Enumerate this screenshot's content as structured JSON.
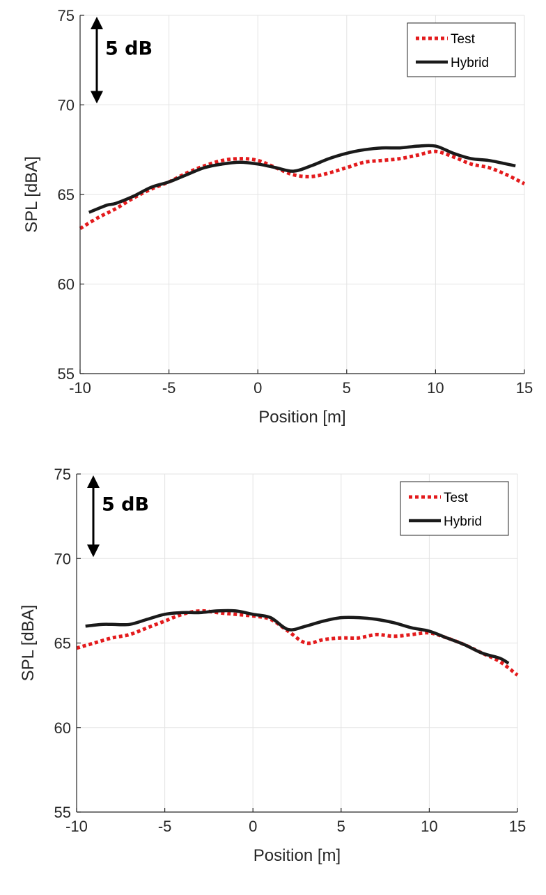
{
  "colors": {
    "test": "#e31a1c",
    "hybrid": "#1a1a1a",
    "axis": "#262626",
    "grid": "#e3e3e3"
  },
  "chart_data": [
    {
      "type": "line",
      "title": "",
      "xlabel": "Position [m]",
      "ylabel": "SPL [dBA]",
      "xlim": [
        -10,
        15
      ],
      "ylim": [
        55,
        75
      ],
      "xticks": [
        -10,
        -5,
        0,
        5,
        10,
        15
      ],
      "xtick_labels": [
        "-10",
        "-5",
        "0",
        "5",
        "10",
        "15"
      ],
      "yticks": [
        55,
        60,
        65,
        70,
        75
      ],
      "ytick_labels": [
        "55",
        "60",
        "65",
        "70",
        "75"
      ],
      "grid": true,
      "legend_position": "top-right",
      "annotation": "5 dB",
      "annotation_range": [
        70,
        75
      ],
      "series": [
        {
          "name": "Test",
          "style": "dotted",
          "x": [
            -10,
            -9,
            -8,
            -7,
            -6,
            -5,
            -4,
            -3,
            -2,
            -1,
            0,
            1,
            2,
            3,
            4,
            5,
            6,
            7,
            8,
            9,
            10,
            11,
            12,
            13,
            14,
            15
          ],
          "y": [
            63.1,
            63.7,
            64.2,
            64.8,
            65.3,
            65.7,
            66.2,
            66.6,
            66.9,
            67.0,
            66.9,
            66.5,
            66.1,
            66.0,
            66.2,
            66.5,
            66.8,
            66.9,
            67.0,
            67.2,
            67.4,
            67.1,
            66.7,
            66.5,
            66.1,
            65.6
          ]
        },
        {
          "name": "Hybrid",
          "style": "solid",
          "x": [
            -9.5,
            -8.5,
            -8,
            -7,
            -6,
            -5,
            -4,
            -3,
            -2,
            -1,
            0,
            1,
            2,
            3,
            4,
            5,
            6,
            7,
            8,
            9,
            10,
            11,
            12,
            13,
            14,
            14.5
          ],
          "y": [
            64.0,
            64.4,
            64.5,
            64.9,
            65.4,
            65.7,
            66.1,
            66.5,
            66.7,
            66.8,
            66.7,
            66.5,
            66.3,
            66.6,
            67.0,
            67.3,
            67.5,
            67.6,
            67.6,
            67.7,
            67.7,
            67.3,
            67.0,
            66.9,
            66.7,
            66.6
          ]
        }
      ]
    },
    {
      "type": "line",
      "title": "",
      "xlabel": "Position [m]",
      "ylabel": "SPL [dBA]",
      "xlim": [
        -10,
        15
      ],
      "ylim": [
        55,
        75
      ],
      "xticks": [
        -10,
        -5,
        0,
        5,
        10,
        15
      ],
      "xtick_labels": [
        "-10",
        "-5",
        "0",
        "5",
        "10",
        "15"
      ],
      "yticks": [
        55,
        60,
        65,
        70,
        75
      ],
      "ytick_labels": [
        "55",
        "60",
        "65",
        "70",
        "75"
      ],
      "grid": true,
      "legend_position": "top-right",
      "annotation": "5 dB",
      "annotation_range": [
        70,
        75
      ],
      "series": [
        {
          "name": "Test",
          "style": "dotted",
          "x": [
            -10,
            -9,
            -8,
            -7,
            -6,
            -5,
            -4,
            -3,
            -2,
            -1,
            0,
            1,
            2,
            3,
            4,
            5,
            6,
            7,
            8,
            9,
            10,
            11,
            12,
            13,
            14,
            15
          ],
          "y": [
            64.7,
            65.0,
            65.3,
            65.5,
            65.9,
            66.3,
            66.7,
            66.9,
            66.8,
            66.7,
            66.6,
            66.4,
            65.7,
            65.0,
            65.2,
            65.3,
            65.3,
            65.5,
            65.4,
            65.5,
            65.6,
            65.3,
            64.9,
            64.4,
            63.9,
            63.1
          ]
        },
        {
          "name": "Hybrid",
          "style": "solid",
          "x": [
            -9.5,
            -8.5,
            -8,
            -7,
            -6,
            -5,
            -4,
            -3,
            -2,
            -1,
            0,
            1,
            2,
            3,
            4,
            5,
            6,
            7,
            8,
            9,
            10,
            11,
            12,
            13,
            14,
            14.5
          ],
          "y": [
            66.0,
            66.1,
            66.1,
            66.1,
            66.4,
            66.7,
            66.8,
            66.8,
            66.9,
            66.9,
            66.7,
            66.5,
            65.8,
            66.0,
            66.3,
            66.5,
            66.5,
            66.4,
            66.2,
            65.9,
            65.7,
            65.3,
            64.9,
            64.4,
            64.1,
            63.8
          ]
        }
      ]
    }
  ]
}
